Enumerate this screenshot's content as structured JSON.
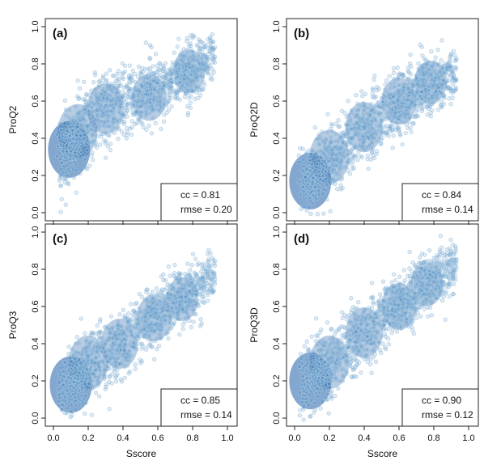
{
  "chart_data": [
    {
      "panel": "(a)",
      "type": "scatter",
      "title": "",
      "xlabel": "",
      "ylabel": "ProQ2",
      "xlim": [
        0.0,
        1.0
      ],
      "ylim": [
        0.0,
        1.0
      ],
      "xticks": [
        "0.0",
        "0.2",
        "0.4",
        "0.6",
        "0.8",
        "1.0"
      ],
      "yticks": [
        "0.0",
        "0.2",
        "0.4",
        "0.6",
        "0.8",
        "1.0"
      ],
      "show_xtick_labels": false,
      "show_ytick_labels": true,
      "grid": false,
      "stats": {
        "cc": "cc = 0.81",
        "rmse": "rmse = 0.20"
      },
      "stats_box_position": "bottom-right",
      "density_color": "#1f5fa8",
      "point_color": "#9ec5e0",
      "centers": [
        [
          0.09,
          0.34
        ],
        [
          0.14,
          0.44
        ],
        [
          0.3,
          0.56
        ],
        [
          0.55,
          0.62
        ],
        [
          0.78,
          0.76
        ]
      ],
      "trend": [
        [
          0.03,
          0.08
        ],
        [
          0.08,
          0.32
        ],
        [
          0.15,
          0.48
        ],
        [
          0.3,
          0.58
        ],
        [
          0.5,
          0.64
        ],
        [
          0.7,
          0.72
        ],
        [
          0.9,
          0.84
        ]
      ]
    },
    {
      "panel": "(b)",
      "type": "scatter",
      "title": "",
      "xlabel": "",
      "ylabel": "ProQ2D",
      "xlim": [
        0.0,
        1.0
      ],
      "ylim": [
        0.0,
        1.0
      ],
      "xticks": [
        "0.0",
        "0.2",
        "0.4",
        "0.6",
        "0.8",
        "1.0"
      ],
      "yticks": [
        "0.0",
        "0.2",
        "0.4",
        "0.6",
        "0.8",
        "1.0"
      ],
      "show_xtick_labels": false,
      "show_ytick_labels": true,
      "grid": false,
      "stats": {
        "cc": "cc = 0.84",
        "rmse": "rmse = 0.14"
      },
      "stats_box_position": "bottom-right",
      "density_color": "#1f5fa8",
      "point_color": "#9ec5e0",
      "centers": [
        [
          0.09,
          0.17
        ],
        [
          0.2,
          0.3
        ],
        [
          0.4,
          0.46
        ],
        [
          0.6,
          0.6
        ],
        [
          0.78,
          0.7
        ]
      ],
      "trend": [
        [
          0.03,
          0.08
        ],
        [
          0.1,
          0.18
        ],
        [
          0.3,
          0.36
        ],
        [
          0.5,
          0.52
        ],
        [
          0.7,
          0.64
        ],
        [
          0.9,
          0.74
        ]
      ]
    },
    {
      "panel": "(c)",
      "type": "scatter",
      "title": "",
      "xlabel": "Sscore",
      "ylabel": "ProQ3",
      "xlim": [
        0.0,
        1.0
      ],
      "ylim": [
        0.0,
        1.0
      ],
      "xticks": [
        "0.0",
        "0.2",
        "0.4",
        "0.6",
        "0.8",
        "1.0"
      ],
      "yticks": [
        "0.0",
        "0.2",
        "0.4",
        "0.6",
        "0.8",
        "1.0"
      ],
      "show_xtick_labels": true,
      "show_ytick_labels": true,
      "grid": false,
      "stats": {
        "cc": "cc = 0.85",
        "rmse": "rmse = 0.14"
      },
      "stats_box_position": "bottom-right",
      "density_color": "#1f5fa8",
      "point_color": "#9ec5e0",
      "centers": [
        [
          0.1,
          0.18
        ],
        [
          0.2,
          0.3
        ],
        [
          0.38,
          0.4
        ],
        [
          0.58,
          0.54
        ],
        [
          0.74,
          0.64
        ]
      ],
      "trend": [
        [
          0.03,
          0.06
        ],
        [
          0.1,
          0.16
        ],
        [
          0.3,
          0.34
        ],
        [
          0.5,
          0.48
        ],
        [
          0.7,
          0.62
        ],
        [
          0.9,
          0.76
        ]
      ]
    },
    {
      "panel": "(d)",
      "type": "scatter",
      "title": "",
      "xlabel": "Sscore",
      "ylabel": "ProQ3D",
      "xlim": [
        0.0,
        1.0
      ],
      "ylim": [
        0.0,
        1.0
      ],
      "xticks": [
        "0.0",
        "0.2",
        "0.4",
        "0.6",
        "0.8",
        "1.0"
      ],
      "yticks": [
        "0.0",
        "0.2",
        "0.4",
        "0.6",
        "0.8",
        "1.0"
      ],
      "show_xtick_labels": true,
      "show_ytick_labels": true,
      "grid": false,
      "stats": {
        "cc": "cc = 0.90",
        "rmse": "rmse = 0.12"
      },
      "stats_box_position": "bottom-right",
      "density_color": "#1f5fa8",
      "point_color": "#9ec5e0",
      "centers": [
        [
          0.09,
          0.2
        ],
        [
          0.2,
          0.3
        ],
        [
          0.4,
          0.46
        ],
        [
          0.6,
          0.6
        ],
        [
          0.76,
          0.72
        ]
      ],
      "trend": [
        [
          0.03,
          0.08
        ],
        [
          0.1,
          0.2
        ],
        [
          0.3,
          0.38
        ],
        [
          0.5,
          0.54
        ],
        [
          0.7,
          0.68
        ],
        [
          0.9,
          0.8
        ]
      ]
    }
  ]
}
